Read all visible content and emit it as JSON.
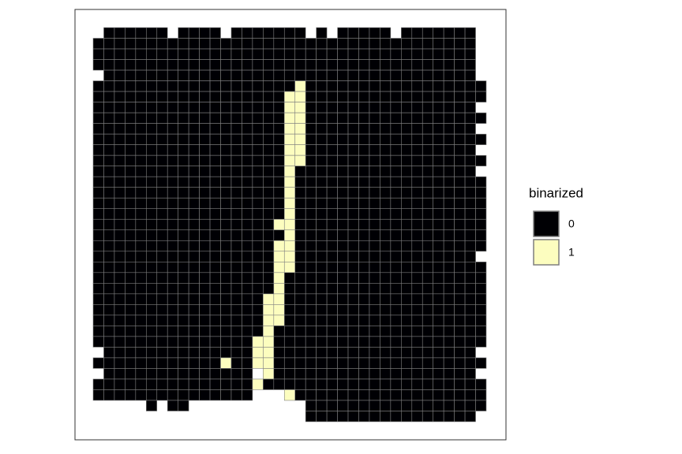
{
  "chart_data": {
    "type": "heatmap",
    "legend": {
      "title": "binarized",
      "levels": [
        "0",
        "1"
      ],
      "colors": [
        "#000004",
        "#FCFDBF"
      ]
    },
    "values": [
      [
        null,
        0,
        0,
        0,
        0,
        0,
        0,
        null,
        0,
        0,
        0,
        0,
        null,
        0,
        0,
        0,
        0,
        0,
        0,
        0,
        null,
        0,
        null,
        0,
        0,
        0,
        0,
        0,
        null,
        0,
        0,
        0,
        0,
        0,
        0,
        0,
        null
      ],
      [
        0,
        0,
        0,
        0,
        0,
        0,
        0,
        0,
        0,
        0,
        0,
        0,
        0,
        0,
        0,
        0,
        0,
        0,
        0,
        0,
        0,
        0,
        0,
        0,
        0,
        0,
        0,
        0,
        0,
        0,
        0,
        0,
        0,
        0,
        0,
        0,
        null
      ],
      [
        0,
        0,
        0,
        0,
        0,
        0,
        0,
        0,
        0,
        0,
        0,
        0,
        0,
        0,
        0,
        0,
        0,
        0,
        0,
        0,
        0,
        0,
        0,
        0,
        0,
        0,
        0,
        0,
        0,
        0,
        0,
        0,
        0,
        0,
        0,
        0,
        null
      ],
      [
        0,
        0,
        0,
        0,
        0,
        0,
        0,
        0,
        0,
        0,
        0,
        0,
        0,
        0,
        0,
        0,
        0,
        0,
        0,
        0,
        0,
        0,
        0,
        0,
        0,
        0,
        0,
        0,
        0,
        0,
        0,
        0,
        0,
        0,
        0,
        0,
        null
      ],
      [
        null,
        0,
        0,
        0,
        0,
        0,
        0,
        0,
        0,
        0,
        0,
        0,
        0,
        0,
        0,
        0,
        0,
        0,
        0,
        0,
        0,
        0,
        0,
        0,
        0,
        0,
        0,
        0,
        0,
        0,
        0,
        0,
        0,
        0,
        0,
        0,
        null
      ],
      [
        0,
        0,
        0,
        0,
        0,
        0,
        0,
        0,
        0,
        0,
        0,
        0,
        0,
        0,
        0,
        0,
        0,
        0,
        0,
        1,
        0,
        0,
        0,
        0,
        0,
        0,
        0,
        0,
        0,
        0,
        0,
        0,
        0,
        0,
        0,
        0,
        0
      ],
      [
        0,
        0,
        0,
        0,
        0,
        0,
        0,
        0,
        0,
        0,
        0,
        0,
        0,
        0,
        0,
        0,
        0,
        0,
        1,
        1,
        0,
        0,
        0,
        0,
        0,
        0,
        0,
        0,
        0,
        0,
        0,
        0,
        0,
        0,
        0,
        0,
        0
      ],
      [
        0,
        0,
        0,
        0,
        0,
        0,
        0,
        0,
        0,
        0,
        0,
        0,
        0,
        0,
        0,
        0,
        0,
        0,
        1,
        1,
        0,
        0,
        0,
        0,
        0,
        0,
        0,
        0,
        0,
        0,
        0,
        0,
        0,
        0,
        0,
        0,
        null
      ],
      [
        0,
        0,
        0,
        0,
        0,
        0,
        0,
        0,
        0,
        0,
        0,
        0,
        0,
        0,
        0,
        0,
        0,
        0,
        1,
        1,
        0,
        0,
        0,
        0,
        0,
        0,
        0,
        0,
        0,
        0,
        0,
        0,
        0,
        0,
        0,
        0,
        0
      ],
      [
        0,
        0,
        0,
        0,
        0,
        0,
        0,
        0,
        0,
        0,
        0,
        0,
        0,
        0,
        0,
        0,
        0,
        0,
        1,
        1,
        0,
        0,
        0,
        0,
        0,
        0,
        0,
        0,
        0,
        0,
        0,
        0,
        0,
        0,
        0,
        0,
        null
      ],
      [
        0,
        0,
        0,
        0,
        0,
        0,
        0,
        0,
        0,
        0,
        0,
        0,
        0,
        0,
        0,
        0,
        0,
        0,
        1,
        1,
        0,
        0,
        0,
        0,
        0,
        0,
        0,
        0,
        0,
        0,
        0,
        0,
        0,
        0,
        0,
        0,
        0
      ],
      [
        0,
        0,
        0,
        0,
        0,
        0,
        0,
        0,
        0,
        0,
        0,
        0,
        0,
        0,
        0,
        0,
        0,
        0,
        1,
        1,
        0,
        0,
        0,
        0,
        0,
        0,
        0,
        0,
        0,
        0,
        0,
        0,
        0,
        0,
        0,
        0,
        null
      ],
      [
        0,
        0,
        0,
        0,
        0,
        0,
        0,
        0,
        0,
        0,
        0,
        0,
        0,
        0,
        0,
        0,
        0,
        0,
        1,
        1,
        0,
        0,
        0,
        0,
        0,
        0,
        0,
        0,
        0,
        0,
        0,
        0,
        0,
        0,
        0,
        0,
        0
      ],
      [
        0,
        0,
        0,
        0,
        0,
        0,
        0,
        0,
        0,
        0,
        0,
        0,
        0,
        0,
        0,
        0,
        0,
        0,
        1,
        0,
        0,
        0,
        0,
        0,
        0,
        0,
        0,
        0,
        0,
        0,
        0,
        0,
        0,
        0,
        0,
        0,
        null
      ],
      [
        0,
        0,
        0,
        0,
        0,
        0,
        0,
        0,
        0,
        0,
        0,
        0,
        0,
        0,
        0,
        0,
        0,
        0,
        1,
        0,
        0,
        0,
        0,
        0,
        0,
        0,
        0,
        0,
        0,
        0,
        0,
        0,
        0,
        0,
        0,
        0,
        0
      ],
      [
        0,
        0,
        0,
        0,
        0,
        0,
        0,
        0,
        0,
        0,
        0,
        0,
        0,
        0,
        0,
        0,
        0,
        0,
        1,
        0,
        0,
        0,
        0,
        0,
        0,
        0,
        0,
        0,
        0,
        0,
        0,
        0,
        0,
        0,
        0,
        0,
        0
      ],
      [
        0,
        0,
        0,
        0,
        0,
        0,
        0,
        0,
        0,
        0,
        0,
        0,
        0,
        0,
        0,
        0,
        0,
        0,
        1,
        0,
        0,
        0,
        0,
        0,
        0,
        0,
        0,
        0,
        0,
        0,
        0,
        0,
        0,
        0,
        0,
        0,
        0
      ],
      [
        0,
        0,
        0,
        0,
        0,
        0,
        0,
        0,
        0,
        0,
        0,
        0,
        0,
        0,
        0,
        0,
        0,
        0,
        1,
        0,
        0,
        0,
        0,
        0,
        0,
        0,
        0,
        0,
        0,
        0,
        0,
        0,
        0,
        0,
        0,
        0,
        0
      ],
      [
        0,
        0,
        0,
        0,
        0,
        0,
        0,
        0,
        0,
        0,
        0,
        0,
        0,
        0,
        0,
        0,
        0,
        1,
        1,
        0,
        0,
        0,
        0,
        0,
        0,
        0,
        0,
        0,
        0,
        0,
        0,
        0,
        0,
        0,
        0,
        0,
        0
      ],
      [
        0,
        0,
        0,
        0,
        0,
        0,
        0,
        0,
        0,
        0,
        0,
        0,
        0,
        0,
        0,
        0,
        0,
        0,
        1,
        0,
        0,
        0,
        0,
        0,
        0,
        0,
        0,
        0,
        0,
        0,
        0,
        0,
        0,
        0,
        0,
        0,
        0
      ],
      [
        0,
        0,
        0,
        0,
        0,
        0,
        0,
        0,
        0,
        0,
        0,
        0,
        0,
        0,
        0,
        0,
        0,
        1,
        1,
        0,
        0,
        0,
        0,
        0,
        0,
        0,
        0,
        0,
        0,
        0,
        0,
        0,
        0,
        0,
        0,
        0,
        0
      ],
      [
        0,
        0,
        0,
        0,
        0,
        0,
        0,
        0,
        0,
        0,
        0,
        0,
        0,
        0,
        0,
        0,
        0,
        1,
        1,
        0,
        0,
        0,
        0,
        0,
        0,
        0,
        0,
        0,
        0,
        0,
        0,
        0,
        0,
        0,
        0,
        0,
        null
      ],
      [
        0,
        0,
        0,
        0,
        0,
        0,
        0,
        0,
        0,
        0,
        0,
        0,
        0,
        0,
        0,
        0,
        0,
        1,
        1,
        0,
        0,
        0,
        0,
        0,
        0,
        0,
        0,
        0,
        0,
        0,
        0,
        0,
        0,
        0,
        0,
        0,
        0
      ],
      [
        0,
        0,
        0,
        0,
        0,
        0,
        0,
        0,
        0,
        0,
        0,
        0,
        0,
        0,
        0,
        0,
        0,
        1,
        0,
        0,
        0,
        0,
        0,
        0,
        0,
        0,
        0,
        0,
        0,
        0,
        0,
        0,
        0,
        0,
        0,
        0,
        0
      ],
      [
        0,
        0,
        0,
        0,
        0,
        0,
        0,
        0,
        0,
        0,
        0,
        0,
        0,
        0,
        0,
        0,
        0,
        1,
        0,
        0,
        0,
        0,
        0,
        0,
        0,
        0,
        0,
        0,
        0,
        0,
        0,
        0,
        0,
        0,
        0,
        0,
        0
      ],
      [
        0,
        0,
        0,
        0,
        0,
        0,
        0,
        0,
        0,
        0,
        0,
        0,
        0,
        0,
        0,
        0,
        1,
        1,
        0,
        0,
        0,
        0,
        0,
        0,
        0,
        0,
        0,
        0,
        0,
        0,
        0,
        0,
        0,
        0,
        0,
        0,
        0
      ],
      [
        0,
        0,
        0,
        0,
        0,
        0,
        0,
        0,
        0,
        0,
        0,
        0,
        0,
        0,
        0,
        0,
        1,
        1,
        0,
        0,
        0,
        0,
        0,
        0,
        0,
        0,
        0,
        0,
        0,
        0,
        0,
        0,
        0,
        0,
        0,
        0,
        0
      ],
      [
        0,
        0,
        0,
        0,
        0,
        0,
        0,
        0,
        0,
        0,
        0,
        0,
        0,
        0,
        0,
        0,
        1,
        1,
        0,
        0,
        0,
        0,
        0,
        0,
        0,
        0,
        0,
        0,
        0,
        0,
        0,
        0,
        0,
        0,
        0,
        0,
        0
      ],
      [
        0,
        0,
        0,
        0,
        0,
        0,
        0,
        0,
        0,
        0,
        0,
        0,
        0,
        0,
        0,
        0,
        1,
        0,
        0,
        0,
        0,
        0,
        0,
        0,
        0,
        0,
        0,
        0,
        0,
        0,
        0,
        0,
        0,
        0,
        0,
        0,
        0
      ],
      [
        0,
        0,
        0,
        0,
        0,
        0,
        0,
        0,
        0,
        0,
        0,
        0,
        0,
        0,
        0,
        1,
        1,
        0,
        0,
        0,
        0,
        0,
        0,
        0,
        0,
        0,
        0,
        0,
        0,
        0,
        0,
        0,
        0,
        0,
        0,
        0,
        0
      ],
      [
        null,
        0,
        0,
        0,
        0,
        0,
        0,
        0,
        0,
        0,
        0,
        0,
        0,
        0,
        0,
        1,
        1,
        0,
        0,
        0,
        0,
        0,
        0,
        0,
        0,
        0,
        0,
        0,
        0,
        0,
        0,
        0,
        0,
        0,
        0,
        0,
        null
      ],
      [
        0,
        0,
        0,
        0,
        0,
        0,
        0,
        0,
        0,
        0,
        0,
        0,
        1,
        0,
        0,
        1,
        1,
        0,
        0,
        0,
        0,
        0,
        0,
        0,
        0,
        0,
        0,
        0,
        0,
        0,
        0,
        0,
        0,
        0,
        0,
        0,
        0
      ],
      [
        null,
        0,
        0,
        0,
        0,
        0,
        0,
        0,
        0,
        0,
        0,
        0,
        0,
        0,
        0,
        null,
        1,
        0,
        0,
        0,
        0,
        0,
        0,
        0,
        0,
        0,
        0,
        0,
        0,
        0,
        0,
        0,
        0,
        0,
        0,
        0,
        null
      ],
      [
        0,
        0,
        0,
        0,
        0,
        0,
        0,
        0,
        0,
        0,
        0,
        0,
        0,
        0,
        0,
        1,
        0,
        0,
        0,
        0,
        0,
        0,
        0,
        0,
        0,
        0,
        0,
        0,
        0,
        0,
        0,
        0,
        0,
        0,
        0,
        0,
        0
      ],
      [
        0,
        0,
        0,
        0,
        0,
        0,
        0,
        0,
        0,
        0,
        0,
        0,
        0,
        0,
        0,
        null,
        null,
        null,
        1,
        0,
        0,
        0,
        0,
        0,
        0,
        0,
        0,
        0,
        0,
        0,
        0,
        0,
        0,
        0,
        0,
        0,
        0
      ],
      [
        null,
        null,
        null,
        null,
        null,
        0,
        null,
        0,
        0,
        null,
        null,
        null,
        null,
        null,
        null,
        null,
        null,
        null,
        null,
        null,
        0,
        0,
        0,
        0,
        0,
        0,
        0,
        0,
        0,
        0,
        0,
        0,
        0,
        0,
        0,
        0,
        0
      ],
      [
        null,
        null,
        null,
        null,
        null,
        null,
        null,
        null,
        null,
        null,
        null,
        null,
        null,
        null,
        null,
        null,
        null,
        null,
        null,
        null,
        0,
        0,
        0,
        0,
        0,
        0,
        0,
        0,
        0,
        0,
        0,
        0,
        0,
        0,
        0,
        0,
        null
      ]
    ]
  }
}
